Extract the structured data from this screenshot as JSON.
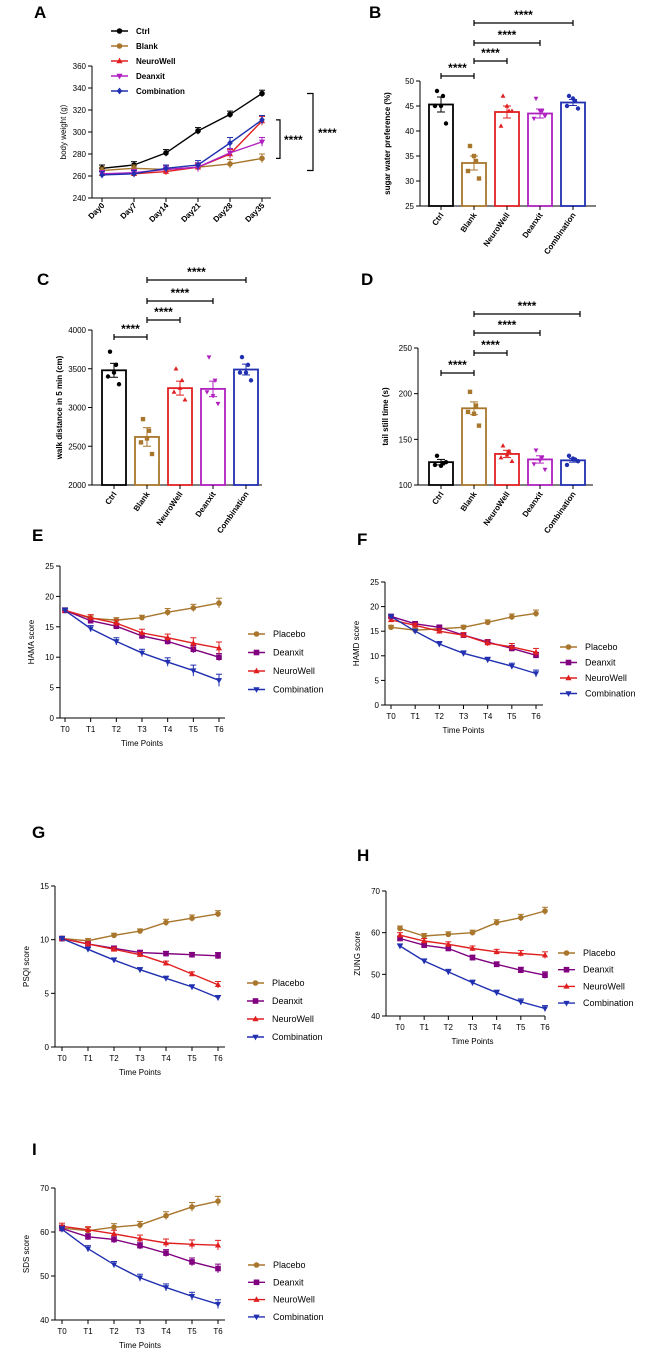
{
  "chart_data": [
    {
      "panel": "A",
      "type": "line",
      "ylabel": "body weight (g)",
      "categories": [
        "Day0",
        "Day7",
        "Day14",
        "Day21",
        "Day28",
        "Day35"
      ],
      "ylim": [
        240,
        360
      ],
      "yticks": [
        240,
        260,
        280,
        300,
        320,
        340,
        360
      ],
      "series": [
        {
          "name": "Ctrl",
          "color": "#000000",
          "marker": "circle",
          "values": [
            267,
            270,
            281,
            301,
            316,
            335
          ],
          "errors": [
            3,
            3,
            3,
            3,
            3,
            3
          ]
        },
        {
          "name": "Blank",
          "color": "#a8762c",
          "marker": "circle",
          "values": [
            265,
            267,
            266,
            268,
            271,
            276
          ],
          "errors": [
            3,
            3,
            3,
            4,
            4,
            4
          ]
        },
        {
          "name": "NeuroWell",
          "color": "#e02020",
          "marker": "triangle",
          "values": [
            262,
            262,
            264,
            268,
            280,
            310
          ],
          "errors": [
            3,
            3,
            3,
            3,
            4,
            4
          ]
        },
        {
          "name": "Deanxit",
          "color": "#b020c0",
          "marker": "triangle-down",
          "values": [
            262,
            263,
            266,
            268,
            281,
            291
          ],
          "errors": [
            3,
            3,
            3,
            4,
            4,
            4
          ]
        },
        {
          "name": "Combination",
          "color": "#2030b0",
          "marker": "diamond",
          "values": [
            261,
            262,
            267,
            270,
            290,
            311
          ],
          "errors": [
            3,
            3,
            3,
            4,
            5,
            4
          ]
        }
      ],
      "significance": [
        "****",
        "****"
      ]
    },
    {
      "panel": "B",
      "type": "bar",
      "ylabel": "sugar water preference  (%)",
      "categories": [
        "Ctrl",
        "Blank",
        "NeuroWell",
        "Deanxit",
        "Combination"
      ],
      "colors": [
        "#000000",
        "#a8762c",
        "#e02020",
        "#b020c0",
        "#2030b0"
      ],
      "values": [
        45.3,
        33.6,
        43.8,
        43.5,
        45.7
      ],
      "errors": [
        1.5,
        1.4,
        1.2,
        0.9,
        0.6
      ],
      "points": [
        [
          48,
          47,
          45,
          41.5,
          45
        ],
        [
          37,
          34,
          32,
          30.5,
          35
        ],
        [
          47,
          44,
          41,
          44,
          45
        ],
        [
          46.5,
          44,
          42.5,
          43,
          44
        ],
        [
          47,
          46,
          45,
          44.5,
          46.5
        ]
      ],
      "ylim": [
        25,
        50
      ],
      "yticks": [
        25,
        30,
        35,
        40,
        45,
        50
      ],
      "significance": [
        "****",
        "****",
        "****",
        "****"
      ]
    },
    {
      "panel": "C",
      "type": "bar",
      "ylabel": "walk distance in 5 min (cm)",
      "categories": [
        "Ctrl",
        "Blank",
        "NeuroWell",
        "Deanxit",
        "Combination"
      ],
      "colors": [
        "#000000",
        "#a8762c",
        "#e02020",
        "#b020c0",
        "#2030b0"
      ],
      "values": [
        3480,
        2620,
        3250,
        3240,
        3490
      ],
      "errors": [
        90,
        120,
        90,
        100,
        70
      ],
      "points": [
        [
          3720,
          3550,
          3400,
          3300,
          3450
        ],
        [
          2850,
          2700,
          2550,
          2400,
          2600
        ],
        [
          3500,
          3350,
          3200,
          3100,
          3250
        ],
        [
          3650,
          3350,
          3200,
          3050,
          3150
        ],
        [
          3650,
          3550,
          3450,
          3350,
          3450
        ]
      ],
      "ylim": [
        2000,
        4000
      ],
      "yticks": [
        2000,
        2500,
        3000,
        3500,
        4000
      ],
      "significance": [
        "****",
        "****",
        "****",
        "****"
      ]
    },
    {
      "panel": "D",
      "type": "bar",
      "ylabel": "tail still time  (s)",
      "categories": [
        "Ctrl",
        "Blank",
        "NeuroWell",
        "Deanxit",
        "Combination"
      ],
      "colors": [
        "#000000",
        "#a8762c",
        "#e02020",
        "#b020c0",
        "#2030b0"
      ],
      "values": [
        125,
        184,
        134,
        128,
        127
      ],
      "errors": [
        3,
        7,
        4,
        4,
        2
      ],
      "points": [
        [
          132,
          124,
          122,
          125,
          121
        ],
        [
          202,
          187,
          180,
          165,
          178
        ],
        [
          143,
          137,
          130,
          126,
          133
        ],
        [
          138,
          130,
          123,
          117,
          127
        ],
        [
          132,
          128,
          122,
          126,
          129
        ]
      ],
      "ylim": [
        100,
        250
      ],
      "yticks": [
        100,
        150,
        200,
        250
      ],
      "significance": [
        "****",
        "****",
        "****",
        "****"
      ]
    },
    {
      "panel": "E",
      "type": "line",
      "ylabel": "HAMA score",
      "xlabel": "Time Points",
      "categories": [
        "T0",
        "T1",
        "T2",
        "T3",
        "T4",
        "T5",
        "T6"
      ],
      "ylim": [
        0,
        25
      ],
      "yticks": [
        0,
        5,
        10,
        15,
        20,
        25
      ],
      "series": [
        {
          "name": "Placebo",
          "color": "#a8762c",
          "marker": "circle",
          "values": [
            17.7,
            16.4,
            16.1,
            16.5,
            17.4,
            18.1,
            18.9
          ],
          "errors": [
            0.4,
            0.4,
            0.4,
            0.4,
            0.6,
            0.6,
            0.8
          ]
        },
        {
          "name": "Deanxit",
          "color": "#800080",
          "marker": "square",
          "values": [
            17.7,
            16.0,
            15.1,
            13.5,
            12.6,
            11.3,
            10.0
          ],
          "errors": [
            0.4,
            0.4,
            0.5,
            0.5,
            0.5,
            0.6,
            0.6
          ]
        },
        {
          "name": "NeuroWell",
          "color": "#e02020",
          "marker": "triangle",
          "values": [
            17.7,
            16.5,
            15.6,
            14.0,
            13.2,
            12.3,
            11.5
          ],
          "errors": [
            0.4,
            0.5,
            0.5,
            0.6,
            0.6,
            0.9,
            1.0
          ]
        },
        {
          "name": "Combination",
          "color": "#2030b0",
          "marker": "triangle-down",
          "values": [
            17.7,
            14.7,
            12.6,
            10.7,
            9.2,
            7.8,
            6.2
          ],
          "errors": [
            0.4,
            0.5,
            0.6,
            0.6,
            0.7,
            0.9,
            1.0
          ]
        }
      ]
    },
    {
      "panel": "F",
      "type": "line",
      "ylabel": "HAMD score",
      "xlabel": "Time Points",
      "categories": [
        "T0",
        "T1",
        "T2",
        "T3",
        "T4",
        "T5",
        "T6"
      ],
      "ylim": [
        0,
        25
      ],
      "yticks": [
        0,
        5,
        10,
        15,
        20,
        25
      ],
      "series": [
        {
          "name": "Placebo",
          "color": "#a8762c",
          "marker": "circle",
          "values": [
            15.8,
            15.2,
            15.5,
            15.8,
            16.8,
            17.9,
            18.6
          ],
          "errors": [
            0.4,
            0.4,
            0.4,
            0.4,
            0.5,
            0.6,
            0.7
          ]
        },
        {
          "name": "Deanxit",
          "color": "#800080",
          "marker": "square",
          "values": [
            18.0,
            16.5,
            15.8,
            14.2,
            12.8,
            11.5,
            10.1
          ],
          "errors": [
            0.4,
            0.4,
            0.4,
            0.5,
            0.5,
            0.6,
            0.6
          ]
        },
        {
          "name": "NeuroWell",
          "color": "#e02020",
          "marker": "triangle",
          "values": [
            17.3,
            16.2,
            15.0,
            14.2,
            12.6,
            11.8,
            10.7
          ],
          "errors": [
            0.4,
            0.4,
            0.5,
            0.5,
            0.6,
            0.7,
            0.8
          ]
        },
        {
          "name": "Combination",
          "color": "#2030b0",
          "marker": "triangle-down",
          "values": [
            18.0,
            15.0,
            12.4,
            10.5,
            9.2,
            7.9,
            6.4
          ],
          "errors": [
            0.4,
            0.4,
            0.5,
            0.5,
            0.5,
            0.6,
            0.7
          ]
        }
      ]
    },
    {
      "panel": "G",
      "type": "line",
      "ylabel": "PSQI score",
      "xlabel": "Time Points",
      "categories": [
        "T0",
        "T1",
        "T2",
        "T3",
        "T4",
        "T5",
        "T6"
      ],
      "ylim": [
        0,
        15
      ],
      "yticks": [
        0,
        5,
        10,
        15
      ],
      "series": [
        {
          "name": "Placebo",
          "color": "#a8762c",
          "marker": "circle",
          "values": [
            10.1,
            9.9,
            10.4,
            10.8,
            11.6,
            12.0,
            12.4
          ],
          "errors": [
            0.2,
            0.2,
            0.2,
            0.2,
            0.3,
            0.3,
            0.3
          ]
        },
        {
          "name": "Deanxit",
          "color": "#800080",
          "marker": "square",
          "values": [
            10.1,
            9.6,
            9.2,
            8.8,
            8.7,
            8.6,
            8.5
          ],
          "errors": [
            0.2,
            0.2,
            0.2,
            0.2,
            0.2,
            0.2,
            0.3
          ]
        },
        {
          "name": "NeuroWell",
          "color": "#e02020",
          "marker": "triangle",
          "values": [
            10.1,
            9.6,
            9.1,
            8.6,
            7.8,
            6.8,
            5.8
          ],
          "errors": [
            0.2,
            0.2,
            0.2,
            0.2,
            0.2,
            0.2,
            0.3
          ]
        },
        {
          "name": "Combination",
          "color": "#2030b0",
          "marker": "triangle-down",
          "values": [
            10.1,
            9.1,
            8.1,
            7.2,
            6.4,
            5.6,
            4.6
          ],
          "errors": [
            0.2,
            0.2,
            0.2,
            0.2,
            0.2,
            0.2,
            0.2
          ]
        }
      ]
    },
    {
      "panel": "H",
      "type": "line",
      "ylabel": "ZUNG score",
      "xlabel": "Time Points",
      "categories": [
        "T0",
        "T1",
        "T2",
        "T3",
        "T4",
        "T5",
        "T6"
      ],
      "ylim": [
        40,
        70
      ],
      "yticks": [
        40,
        50,
        60,
        70
      ],
      "series": [
        {
          "name": "Placebo",
          "color": "#a8762c",
          "marker": "circle",
          "values": [
            61.0,
            59.2,
            59.6,
            60.0,
            62.4,
            63.6,
            65.2
          ],
          "errors": [
            0.6,
            0.6,
            0.6,
            0.6,
            0.7,
            0.8,
            0.9
          ]
        },
        {
          "name": "Deanxit",
          "color": "#800080",
          "marker": "square",
          "values": [
            58.6,
            57.0,
            56.2,
            54.0,
            52.4,
            51.0,
            49.8
          ],
          "errors": [
            0.6,
            0.6,
            0.6,
            0.6,
            0.6,
            0.7,
            0.8
          ]
        },
        {
          "name": "NeuroWell",
          "color": "#e02020",
          "marker": "triangle",
          "values": [
            59.4,
            58.0,
            57.2,
            56.2,
            55.4,
            55.0,
            54.6
          ],
          "errors": [
            0.6,
            0.6,
            0.6,
            0.6,
            0.6,
            0.7,
            0.8
          ]
        },
        {
          "name": "Combination",
          "color": "#2030b0",
          "marker": "triangle-down",
          "values": [
            56.8,
            53.2,
            50.6,
            48.0,
            45.6,
            43.4,
            41.8
          ],
          "errors": [
            0.5,
            0.5,
            0.6,
            0.6,
            0.6,
            0.7,
            0.7
          ]
        }
      ]
    },
    {
      "panel": "I",
      "type": "line",
      "ylabel": "SDS score",
      "xlabel": "Time Points",
      "categories": [
        "T0",
        "T1",
        "T2",
        "T3",
        "T4",
        "T5",
        "T6"
      ],
      "ylim": [
        40,
        70
      ],
      "yticks": [
        40,
        50,
        60,
        70
      ],
      "series": [
        {
          "name": "Placebo",
          "color": "#a8762c",
          "marker": "circle",
          "values": [
            60.9,
            60.3,
            61.1,
            61.6,
            63.7,
            65.7,
            67.0
          ],
          "errors": [
            0.7,
            0.7,
            0.8,
            0.8,
            0.9,
            1.0,
            1.1
          ]
        },
        {
          "name": "Deanxit",
          "color": "#800080",
          "marker": "square",
          "values": [
            60.8,
            58.9,
            58.3,
            56.9,
            55.2,
            53.2,
            51.7
          ],
          "errors": [
            0.7,
            0.7,
            0.8,
            0.8,
            0.8,
            0.9,
            1.0
          ]
        },
        {
          "name": "NeuroWell",
          "color": "#e02020",
          "marker": "triangle",
          "values": [
            61.3,
            60.5,
            59.6,
            58.5,
            57.5,
            57.2,
            57.0
          ],
          "errors": [
            0.7,
            0.7,
            0.8,
            0.8,
            0.9,
            1.0,
            1.1
          ]
        },
        {
          "name": "Combination",
          "color": "#2030b0",
          "marker": "triangle-down",
          "values": [
            60.6,
            56.2,
            52.6,
            49.6,
            47.4,
            45.4,
            43.6
          ],
          "errors": [
            0.6,
            0.7,
            0.7,
            0.8,
            0.8,
            0.9,
            1.0
          ]
        }
      ]
    }
  ]
}
